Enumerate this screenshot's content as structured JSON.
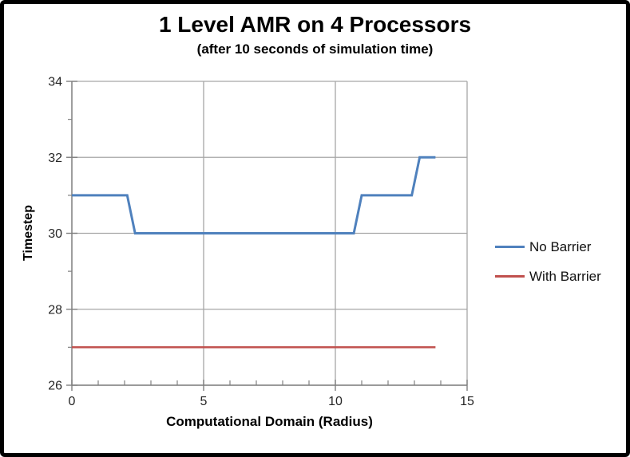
{
  "chart_data": {
    "type": "line",
    "title": "1 Level AMR on 4 Processors",
    "subtitle": "(after 10 seconds of simulation time)",
    "xlabel": "Computational Domain (Radius)",
    "ylabel": "Timestep",
    "xlim": [
      0,
      15
    ],
    "ylim": [
      26,
      34
    ],
    "x_major_ticks": [
      0,
      5,
      10,
      15
    ],
    "x_minor_ticks": [
      1,
      2,
      3,
      4,
      6,
      7,
      8,
      9,
      11,
      12,
      13,
      14
    ],
    "y_major_ticks": [
      26,
      28,
      30,
      32,
      34
    ],
    "y_minor_ticks": [
      27,
      29,
      31,
      33
    ],
    "grid": true,
    "legend_position": "right",
    "series": [
      {
        "name": "No Barrier",
        "color": "#4F81BD",
        "width": 3,
        "points": [
          [
            0,
            31
          ],
          [
            2.1,
            31
          ],
          [
            2.4,
            30
          ],
          [
            10.7,
            30
          ],
          [
            11,
            31
          ],
          [
            12.9,
            31
          ],
          [
            13.2,
            32
          ],
          [
            13.8,
            32
          ]
        ]
      },
      {
        "name": "With Barrier",
        "color": "#C0504D",
        "width": 2.6,
        "points": [
          [
            0,
            27
          ],
          [
            13.8,
            27
          ]
        ]
      }
    ],
    "colors": {
      "gridline": "#A6A6A6",
      "axis": "#808080",
      "tick_label": "#262626",
      "frame_border": "#000000",
      "background": "#FFFFFF"
    }
  }
}
